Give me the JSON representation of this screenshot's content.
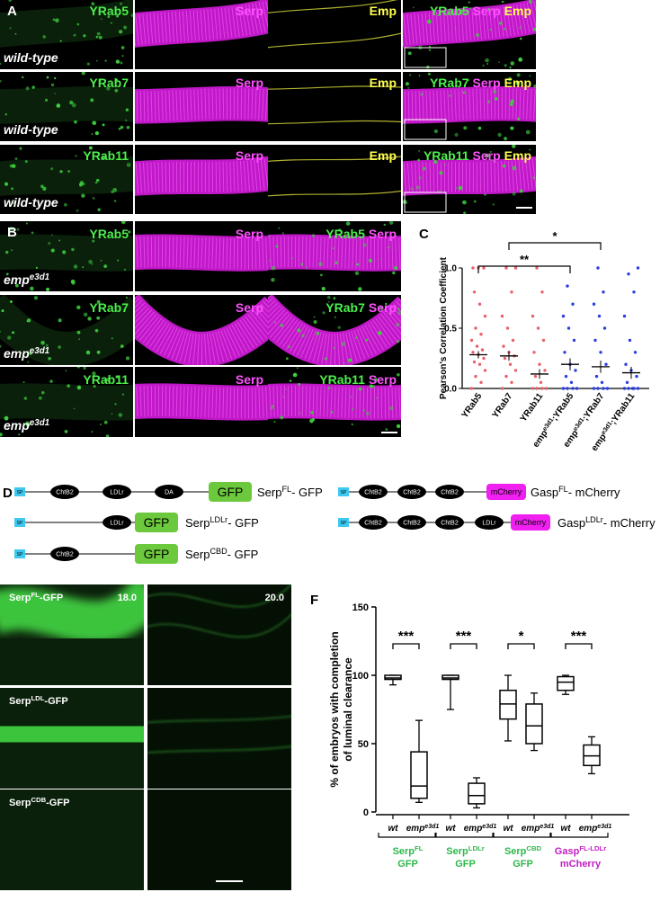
{
  "panel_a": {
    "label": "A",
    "rows": [
      {
        "genotype": [
          "wild-type"
        ],
        "cells": [
          [
            {
              "t": "YRab5",
              "c": "#4cf04c"
            }
          ],
          [
            {
              "t": "Serp",
              "c": "#ff50ff"
            }
          ],
          [
            {
              "t": "Emp",
              "c": "#ffff50"
            }
          ],
          [
            {
              "t": "YRab5",
              "c": "#4cf04c"
            },
            {
              "t": "Serp",
              "c": "#ff50ff"
            },
            {
              "t": "Emp",
              "c": "#ffff50"
            }
          ]
        ]
      },
      {
        "genotype": [
          "wild-type"
        ],
        "cells": [
          [
            {
              "t": "YRab7",
              "c": "#4cf04c"
            }
          ],
          [
            {
              "t": "Serp",
              "c": "#ff50ff"
            }
          ],
          [
            {
              "t": "Emp",
              "c": "#ffff50"
            }
          ],
          [
            {
              "t": "YRab7",
              "c": "#4cf04c"
            },
            {
              "t": "Serp",
              "c": "#ff50ff"
            },
            {
              "t": "Emp",
              "c": "#ffff50"
            }
          ]
        ]
      },
      {
        "genotype": [
          "wild-type"
        ],
        "cells": [
          [
            {
              "t": "YRab11",
              "c": "#4cf04c"
            }
          ],
          [
            {
              "t": "Serp",
              "c": "#ff50ff"
            }
          ],
          [
            {
              "t": "Emp",
              "c": "#ffff50"
            }
          ],
          [
            {
              "t": "YRab11",
              "c": "#4cf04c"
            },
            {
              "t": "Serp",
              "c": "#ff50ff"
            },
            {
              "t": "Emp",
              "c": "#ffff50"
            }
          ]
        ]
      }
    ]
  },
  "panel_b": {
    "label": "B",
    "rows": [
      {
        "genotype": [
          "emp",
          {
            "sup": "e3d1"
          }
        ],
        "cells": [
          [
            {
              "t": "YRab5",
              "c": "#4cf04c"
            }
          ],
          [
            {
              "t": "Serp",
              "c": "#ff50ff"
            }
          ],
          [
            {
              "t": "YRab5",
              "c": "#4cf04c"
            },
            {
              "t": "Serp",
              "c": "#ff50ff"
            }
          ]
        ]
      },
      {
        "genotype": [
          "emp",
          {
            "sup": "e3d1"
          }
        ],
        "cells": [
          [
            {
              "t": "YRab7",
              "c": "#4cf04c"
            }
          ],
          [
            {
              "t": "Serp",
              "c": "#ff50ff"
            }
          ],
          [
            {
              "t": "YRab7",
              "c": "#4cf04c"
            },
            {
              "t": "Serp",
              "c": "#ff50ff"
            }
          ]
        ]
      },
      {
        "genotype": [
          "emp",
          {
            "sup": "e3d1"
          }
        ],
        "cells": [
          [
            {
              "t": "YRab11",
              "c": "#4cf04c"
            }
          ],
          [
            {
              "t": "Serp",
              "c": "#ff50ff"
            }
          ],
          [
            {
              "t": "YRab11",
              "c": "#4cf04c"
            },
            {
              "t": "Serp",
              "c": "#ff50ff"
            }
          ]
        ]
      }
    ]
  },
  "panel_d": {
    "label": "D",
    "constructs": [
      {
        "domains": [
          "SP",
          "ChtB2",
          "LDLr",
          "DA",
          "GFP"
        ],
        "name": [
          "Serp",
          {
            "sup": "FL"
          },
          "- GFP"
        ]
      },
      {
        "domains": [
          "SP",
          "LDLr",
          "GFP"
        ],
        "name": [
          "Serp",
          {
            "sup": "LDLr"
          },
          "- GFP"
        ]
      },
      {
        "domains": [
          "SP",
          "ChtB2",
          "GFP"
        ],
        "name": [
          "Serp",
          {
            "sup": "CBD"
          },
          "- GFP"
        ]
      },
      {
        "domains": [
          "SP",
          "ChtB2",
          "ChtB2",
          "ChtB2",
          "mCherry"
        ],
        "name": [
          "Gasp",
          {
            "sup": "FL"
          },
          "- mCherry"
        ]
      },
      {
        "domains": [
          "SP",
          "ChtB2",
          "ChtB2",
          "ChtB2",
          "LDLr",
          "mCherry"
        ],
        "name": [
          "Gasp",
          {
            "sup": "LDLr"
          },
          "- mCherry"
        ]
      }
    ]
  },
  "panel_e": {
    "label": "E",
    "times": [
      "18.0",
      "20.0"
    ],
    "rows": [
      {
        "name": [
          "Serp",
          {
            "sup": "FL"
          },
          "-GFP"
        ]
      },
      {
        "name": [
          "Serp",
          {
            "sup": "LDL"
          },
          "-GFP"
        ]
      },
      {
        "name": [
          "Serp",
          {
            "sup": "CDB"
          },
          "-GFP"
        ]
      }
    ]
  },
  "chart_data": [
    {
      "type": "scatter-dot",
      "label": "C",
      "y_label": "Pearson's Correlation Coefficient",
      "categories": [
        [
          "YRab5"
        ],
        [
          "YRab7"
        ],
        [
          "YRab11"
        ],
        [
          "emp",
          {
            "sup": "e3d1"
          },
          ";YRab5"
        ],
        [
          "emp",
          {
            "sup": "e3d1"
          },
          ";YRab7"
        ],
        [
          "emp",
          {
            "sup": "e3d1"
          },
          ";YRab11"
        ]
      ],
      "series": [
        {
          "color": "#e8606a",
          "values": [
            0,
            0.05,
            0.1,
            0.15,
            0.2,
            0.22,
            0.25,
            0.28,
            0.3,
            0.32,
            0.35,
            0.4,
            0.45,
            0.5,
            0.6,
            0.7,
            0.8,
            1,
            1,
            1
          ]
        },
        {
          "color": "#e8606a",
          "values": [
            0,
            0.05,
            0.1,
            0.15,
            0.2,
            0.25,
            0.27,
            0.3,
            0.35,
            0.4,
            0.5,
            0.6,
            0.8,
            1,
            1
          ]
        },
        {
          "color": "#e8606a",
          "values": [
            0,
            0,
            0,
            0,
            0.05,
            0.1,
            0.15,
            0.2,
            0.3,
            0.4,
            0.5,
            0.6,
            0.8,
            1
          ]
        },
        {
          "color": "#2a3ee0",
          "values": [
            0,
            0,
            0,
            0,
            0.05,
            0.1,
            0.15,
            0.2,
            0.3,
            0.4,
            0.5,
            0.6,
            0.7,
            0.85
          ]
        },
        {
          "color": "#2a3ee0",
          "values": [
            0,
            0,
            0,
            0,
            0.05,
            0.1,
            0.2,
            0.3,
            0.4,
            0.5,
            0.6,
            0.7,
            0.8,
            1
          ]
        },
        {
          "color": "#2a3ee0",
          "values": [
            0,
            0,
            0,
            0,
            0,
            0.05,
            0.1,
            0.15,
            0.2,
            0.3,
            0.4,
            0.6,
            0.8,
            0.95,
            1
          ]
        }
      ],
      "means": [
        0.28,
        0.27,
        0.12,
        0.2,
        0.18,
        0.13
      ],
      "errors": [
        0.03,
        0.04,
        0.04,
        0.05,
        0.05,
        0.05
      ],
      "ylim": [
        0,
        1
      ],
      "yticks": [
        {
          "value": 0,
          "label": "0.0"
        },
        {
          "value": 0.5,
          "label": "0.5"
        },
        {
          "value": 1,
          "label": "1.0"
        }
      ],
      "comparisons": [
        {
          "from": 0,
          "to": 3,
          "label": "**"
        },
        {
          "from": 1,
          "to": 4,
          "label": "*"
        }
      ]
    },
    {
      "type": "box",
      "label": "F",
      "y_label": [
        "% of embryos with completion",
        "of luminal clearance"
      ],
      "ylim": [
        0,
        150
      ],
      "yticks": [
        0,
        50,
        100,
        150
      ],
      "groups": [
        {
          "lines": [
            [
              "Serp",
              {
                "sup": "FL"
              }
            ],
            [
              "GFP"
            ]
          ],
          "color": "#2db84a",
          "significance": "***",
          "boxes": [
            {
              "label": [
                "wt"
              ],
              "min": 93,
              "q1": 97,
              "median": 98,
              "q3": 100,
              "max": 100
            },
            {
              "label": [
                "emp",
                {
                  "sup": "e3d1"
                }
              ],
              "min": 7,
              "q1": 10,
              "median": 19,
              "q3": 44,
              "max": 67
            }
          ]
        },
        {
          "lines": [
            [
              "Serp",
              {
                "sup": "LDLr"
              }
            ],
            [
              "GFP"
            ]
          ],
          "color": "#2db84a",
          "significance": "***",
          "boxes": [
            {
              "label": [
                "wt"
              ],
              "min": 75,
              "q1": 97,
              "median": 98,
              "q3": 100,
              "max": 100
            },
            {
              "label": [
                "emp",
                {
                  "sup": "e3d1"
                }
              ],
              "min": 3,
              "q1": 6,
              "median": 12,
              "q3": 21,
              "max": 25
            }
          ]
        },
        {
          "lines": [
            [
              "Serp",
              {
                "sup": "CBD"
              }
            ],
            [
              "GFP"
            ]
          ],
          "color": "#2db84a",
          "significance": "*",
          "boxes": [
            {
              "label": [
                "wt"
              ],
              "min": 52,
              "q1": 68,
              "median": 79,
              "q3": 89,
              "max": 100
            },
            {
              "label": [
                "emp",
                {
                  "sup": "e3d1"
                }
              ],
              "min": 45,
              "q1": 50,
              "median": 63,
              "q3": 79,
              "max": 87
            }
          ]
        },
        {
          "lines": [
            [
              "Gasp",
              {
                "sup": "FL-LDLr"
              }
            ],
            [
              "mCherry"
            ]
          ],
          "color": "#c020c0",
          "significance": "***",
          "boxes": [
            {
              "label": [
                "wt"
              ],
              "min": 86,
              "q1": 89,
              "median": 95,
              "q3": 99,
              "max": 100
            },
            {
              "label": [
                "emp",
                {
                  "sup": "e3d1"
                }
              ],
              "min": 28,
              "q1": 34,
              "median": 41,
              "q3": 49,
              "max": 55
            }
          ]
        }
      ]
    }
  ]
}
